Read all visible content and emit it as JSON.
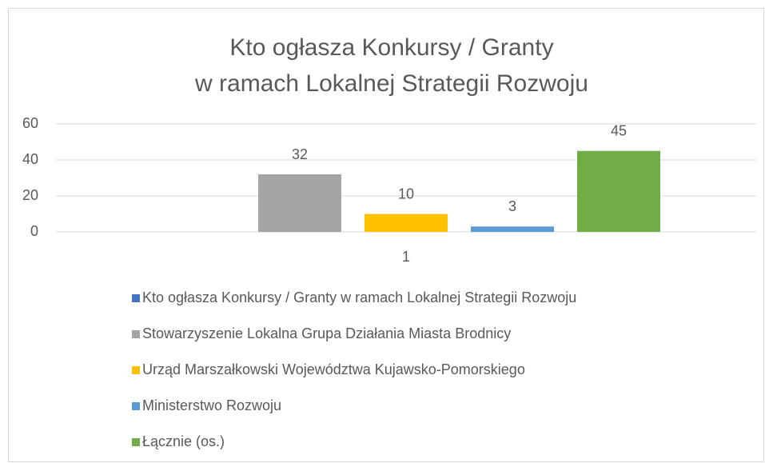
{
  "chart_data": {
    "type": "bar",
    "title": [
      "Kto ogłasza Konkursy / Granty",
      "w ramach Lokalnej Strategii Rozwoju"
    ],
    "categories": [
      "1"
    ],
    "series": [
      {
        "name": "Kto ogłasza Konkursy / Granty w ramach Lokalnej Strategii Rozwoju",
        "color": "#4472c4",
        "values": [
          null
        ]
      },
      {
        "name": "Stowarzyszenie Lokalna Grupa Działania Miasta Brodnicy",
        "color": "#a5a5a5",
        "values": [
          32
        ]
      },
      {
        "name": "Urząd Marszałkowski Województwa Kujawsko-Pomorskiego",
        "color": "#ffc000",
        "values": [
          10
        ]
      },
      {
        "name": "Ministerstwo Rozwoju",
        "color": "#5b9bd5",
        "values": [
          3
        ]
      },
      {
        "name": "Łącznie (os.)",
        "color": "#70ad47",
        "values": [
          45
        ]
      }
    ],
    "ylim": [
      0,
      60
    ],
    "yticks": [
      0,
      20,
      40,
      60
    ],
    "grid": true,
    "legend": "bottom"
  }
}
